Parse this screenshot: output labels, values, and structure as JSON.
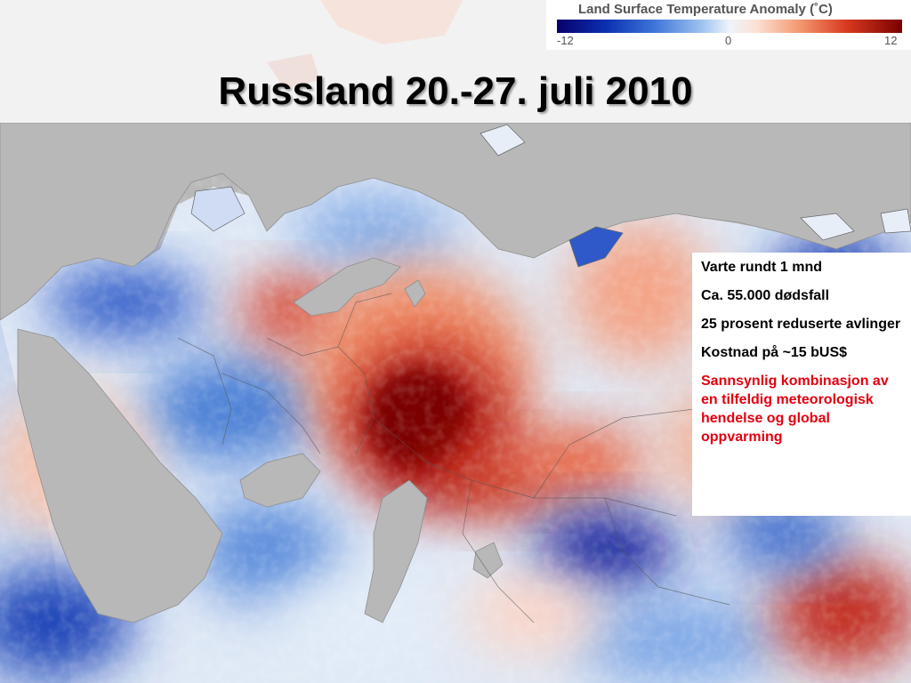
{
  "legend": {
    "title": "Land Surface Temperature Anomaly (˚C)",
    "min_label": "-12",
    "mid_label": "0",
    "max_label": "12",
    "colors": {
      "cold": "#08006b",
      "neutral": "#eef4fb",
      "hot": "#7a0000"
    }
  },
  "slide": {
    "title": "Russland 20.-27. juli 2010"
  },
  "info_panel": {
    "items": [
      "Varte rundt 1 mnd",
      "Ca. 55.000 dødsfall",
      "25 prosent reduserte avlinger",
      "Kostnad på ~15 bUS$"
    ],
    "highlight": "Sannsynlig kombinasjon av en tilfeldig meteorologisk hendelse og global oppvarming",
    "highlight_color": "#e3000f"
  },
  "map": {
    "water_color": "#b8b8b8",
    "hot_spot": "heat anomaly over western Russia",
    "cold_spot": "cold anomaly over Kazakhstan"
  }
}
